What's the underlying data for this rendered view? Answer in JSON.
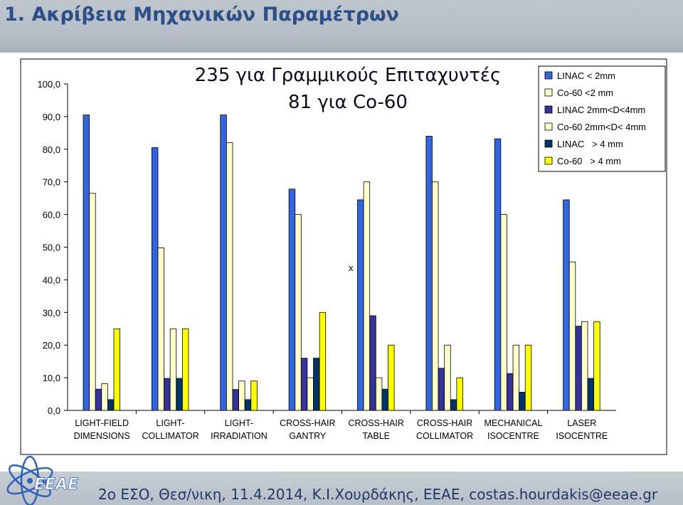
{
  "slide": {
    "title": "1. Ακρίβεια Μηχανικών Παραμέτρων",
    "footer": "2ο ΕΣΟ, Θεσ/νικη, 11.4.2014, Κ.Ι.Χουρδάκης, ΕΕΑΕ, costas.hourdakis@eeae.gr",
    "logo_text": "EEAE"
  },
  "chart_data": {
    "type": "bar",
    "title_lines": [
      "235 για Γραμμικούς Επιταχυντές",
      "81 για Co-60"
    ],
    "categories": [
      [
        "LIGHT-FIELD",
        "DIMENSIONS"
      ],
      [
        "LIGHT-",
        "COLLIMATOR"
      ],
      [
        "LIGHT-",
        "IRRADIATION"
      ],
      [
        "CROSS-HAIR",
        "GANTRY"
      ],
      [
        "CROSS-HAIR",
        "TABLE"
      ],
      [
        "CROSS-HAIR",
        "COLLIMATOR"
      ],
      [
        "MECHANICAL",
        "ISOCENTRE"
      ],
      [
        "LASER",
        "ISOCENTRE"
      ]
    ],
    "ylim": [
      0,
      100
    ],
    "yticks": [
      "0,0",
      "10,0",
      "20,0",
      "30,0",
      "40,0",
      "50,0",
      "60,0",
      "70,0",
      "80,0",
      "90,0",
      "100,0"
    ],
    "grid": false,
    "legend_position": "top-right",
    "annotation": "x",
    "series": [
      {
        "name": "LINAC < 2mm",
        "color": "#3366dd",
        "values": [
          90.5,
          80.5,
          90.5,
          67.8,
          64.5,
          84.0,
          83.2,
          64.5
        ]
      },
      {
        "name": "Co-60 <2 mm",
        "color": "#ffffcc",
        "values": [
          66.5,
          49.8,
          82.0,
          60.0,
          70.0,
          70.0,
          60.0,
          45.5
        ]
      },
      {
        "name": "LINAC 2mm<D<4mm",
        "color": "#333399",
        "values": [
          6.5,
          9.8,
          6.4,
          16.0,
          29.0,
          12.9,
          11.3,
          25.8
        ]
      },
      {
        "name": "Co-60 2mm<D< 4mm",
        "color": "#ffffcc",
        "values": [
          8.2,
          25.0,
          9.0,
          10.0,
          10.0,
          20.0,
          20.0,
          27.2
        ]
      },
      {
        "name": "LINAC   > 4 mm",
        "color": "#003366",
        "values": [
          3.3,
          9.8,
          3.3,
          16.0,
          6.5,
          3.3,
          5.6,
          9.8
        ]
      },
      {
        "name": "Co-60   > 4 mm",
        "color": "#ffff00",
        "values": [
          25.0,
          25.0,
          9.0,
          30.0,
          20.0,
          10.0,
          20.0,
          27.2
        ]
      }
    ]
  }
}
